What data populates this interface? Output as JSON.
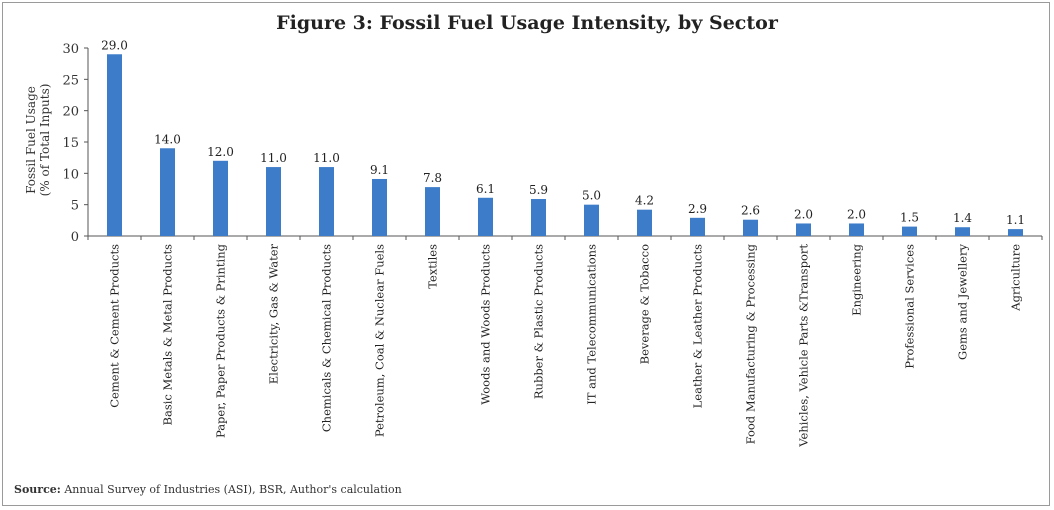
{
  "chart_data": {
    "type": "bar",
    "title": "Figure 3: Fossil Fuel Usage Intensity, by Sector",
    "ylabel_line1": "Fossil Fuel Usage",
    "ylabel_line2": "(% of Total Inputs)",
    "xlabel": "",
    "ylim": [
      0,
      30
    ],
    "yticks": [
      0,
      5,
      10,
      15,
      20,
      25,
      30
    ],
    "grid": false,
    "bar_color": "#3d7cc9",
    "categories": [
      "Cement & Cement Products",
      "Basic Metals & Metal Products",
      "Paper, Paper Products & Printing",
      "Electricity, Gas & Water",
      "Chemicals & Chemical Products",
      "Petroleum, Coal & Nuclear Fuels",
      "Textiles",
      "Woods and Woods Products",
      "Rubber & Plastic Products",
      "IT and Telecommunications",
      "Beverage & Tobacco",
      "Leather & Leather Products",
      "Food Manufacturing & Processing",
      "Vehicles, Vehicle Parts &Transport",
      "Engineering",
      "Professional Services",
      "Gems and Jewellery",
      "Agriculture"
    ],
    "values": [
      29.0,
      14.0,
      12.0,
      11.0,
      11.0,
      9.1,
      7.8,
      6.1,
      5.9,
      5.0,
      4.2,
      2.9,
      2.6,
      2.0,
      2.0,
      1.5,
      1.4,
      1.1
    ],
    "value_labels": [
      "29.0",
      "14.0",
      "12.0",
      "11.0",
      "11.0",
      "9.1",
      "7.8",
      "6.1",
      "5.9",
      "5.0",
      "4.2",
      "2.9",
      "2.6",
      "2.0",
      "2.0",
      "1.5",
      "1.4",
      "1.1"
    ]
  },
  "source": {
    "label": "Source:",
    "text": " Annual Survey of Industries (ASI), BSR, Author's calculation"
  }
}
